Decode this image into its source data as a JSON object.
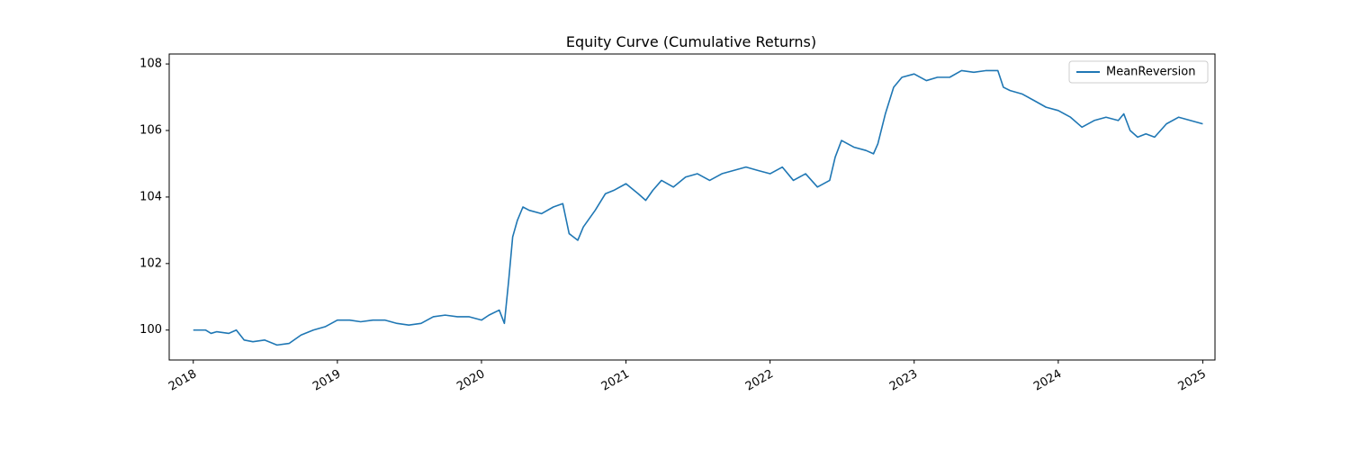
{
  "chart_data": {
    "type": "line",
    "title": "Equity Curve (Cumulative Returns)",
    "xlabel": "",
    "ylabel": "",
    "x_tick_labels": [
      "2018",
      "2019",
      "2020",
      "2021",
      "2022",
      "2023",
      "2024",
      "2025"
    ],
    "y_tick_labels": [
      "100",
      "102",
      "104",
      "106",
      "108"
    ],
    "y_ticks": [
      100,
      102,
      104,
      106,
      108
    ],
    "x_range": [
      "2017-11-01",
      "2025-02-01"
    ],
    "ylim": [
      99.1,
      108.3
    ],
    "grid": false,
    "legend": {
      "placement": "upper-right",
      "entries": [
        "MeanReversion"
      ]
    },
    "series": [
      {
        "name": "MeanReversion",
        "color": "#1f77b4",
        "points": [
          [
            "2018-01-01",
            100.0
          ],
          [
            "2018-02-01",
            100.0
          ],
          [
            "2018-02-15",
            99.9
          ],
          [
            "2018-03-01",
            99.95
          ],
          [
            "2018-04-01",
            99.9
          ],
          [
            "2018-04-20",
            100.0
          ],
          [
            "2018-05-10",
            99.7
          ],
          [
            "2018-06-01",
            99.65
          ],
          [
            "2018-07-01",
            99.7
          ],
          [
            "2018-08-01",
            99.55
          ],
          [
            "2018-09-01",
            99.6
          ],
          [
            "2018-10-01",
            99.85
          ],
          [
            "2018-11-01",
            100.0
          ],
          [
            "2018-12-01",
            100.1
          ],
          [
            "2019-01-01",
            100.3
          ],
          [
            "2019-02-01",
            100.3
          ],
          [
            "2019-03-01",
            100.25
          ],
          [
            "2019-04-01",
            100.3
          ],
          [
            "2019-05-01",
            100.3
          ],
          [
            "2019-06-01",
            100.2
          ],
          [
            "2019-07-01",
            100.15
          ],
          [
            "2019-08-01",
            100.2
          ],
          [
            "2019-09-01",
            100.4
          ],
          [
            "2019-10-01",
            100.45
          ],
          [
            "2019-11-01",
            100.4
          ],
          [
            "2019-12-01",
            100.4
          ],
          [
            "2020-01-01",
            100.3
          ],
          [
            "2020-01-20",
            100.45
          ],
          [
            "2020-02-15",
            100.6
          ],
          [
            "2020-02-28",
            100.2
          ],
          [
            "2020-03-10",
            101.5
          ],
          [
            "2020-03-20",
            102.8
          ],
          [
            "2020-04-01",
            103.3
          ],
          [
            "2020-04-15",
            103.7
          ],
          [
            "2020-05-01",
            103.6
          ],
          [
            "2020-06-01",
            103.5
          ],
          [
            "2020-07-01",
            103.7
          ],
          [
            "2020-07-25",
            103.8
          ],
          [
            "2020-08-10",
            102.9
          ],
          [
            "2020-09-01",
            102.7
          ],
          [
            "2020-09-15",
            103.1
          ],
          [
            "2020-10-15",
            103.6
          ],
          [
            "2020-11-10",
            104.1
          ],
          [
            "2020-12-01",
            104.2
          ],
          [
            "2021-01-01",
            104.4
          ],
          [
            "2021-02-01",
            104.1
          ],
          [
            "2021-02-20",
            103.9
          ],
          [
            "2021-03-10",
            104.2
          ],
          [
            "2021-04-01",
            104.5
          ],
          [
            "2021-05-01",
            104.3
          ],
          [
            "2021-06-01",
            104.6
          ],
          [
            "2021-07-01",
            104.7
          ],
          [
            "2021-08-01",
            104.5
          ],
          [
            "2021-09-01",
            104.7
          ],
          [
            "2021-10-01",
            104.8
          ],
          [
            "2021-11-01",
            104.9
          ],
          [
            "2021-12-01",
            104.8
          ],
          [
            "2022-01-01",
            104.7
          ],
          [
            "2022-02-01",
            104.9
          ],
          [
            "2022-03-01",
            104.5
          ],
          [
            "2022-04-01",
            104.7
          ],
          [
            "2022-05-01",
            104.3
          ],
          [
            "2022-06-01",
            104.5
          ],
          [
            "2022-06-15",
            105.2
          ],
          [
            "2022-07-01",
            105.7
          ],
          [
            "2022-08-01",
            105.5
          ],
          [
            "2022-09-01",
            105.4
          ],
          [
            "2022-09-20",
            105.3
          ],
          [
            "2022-10-01",
            105.6
          ],
          [
            "2022-10-20",
            106.5
          ],
          [
            "2022-11-10",
            107.3
          ],
          [
            "2022-12-01",
            107.6
          ],
          [
            "2023-01-01",
            107.7
          ],
          [
            "2023-02-01",
            107.5
          ],
          [
            "2023-03-01",
            107.6
          ],
          [
            "2023-04-01",
            107.6
          ],
          [
            "2023-05-01",
            107.8
          ],
          [
            "2023-06-01",
            107.75
          ],
          [
            "2023-07-01",
            107.8
          ],
          [
            "2023-08-01",
            107.8
          ],
          [
            "2023-08-15",
            107.3
          ],
          [
            "2023-09-01",
            107.2
          ],
          [
            "2023-10-01",
            107.1
          ],
          [
            "2023-11-01",
            106.9
          ],
          [
            "2023-12-01",
            106.7
          ],
          [
            "2024-01-01",
            106.6
          ],
          [
            "2024-02-01",
            106.4
          ],
          [
            "2024-03-01",
            106.1
          ],
          [
            "2024-04-01",
            106.3
          ],
          [
            "2024-05-01",
            106.4
          ],
          [
            "2024-06-01",
            106.3
          ],
          [
            "2024-06-15",
            106.5
          ],
          [
            "2024-07-01",
            106.0
          ],
          [
            "2024-07-20",
            105.8
          ],
          [
            "2024-08-10",
            105.9
          ],
          [
            "2024-09-01",
            105.8
          ],
          [
            "2024-10-01",
            106.2
          ],
          [
            "2024-11-01",
            106.4
          ],
          [
            "2024-12-01",
            106.3
          ],
          [
            "2025-01-01",
            106.2
          ]
        ]
      }
    ]
  }
}
